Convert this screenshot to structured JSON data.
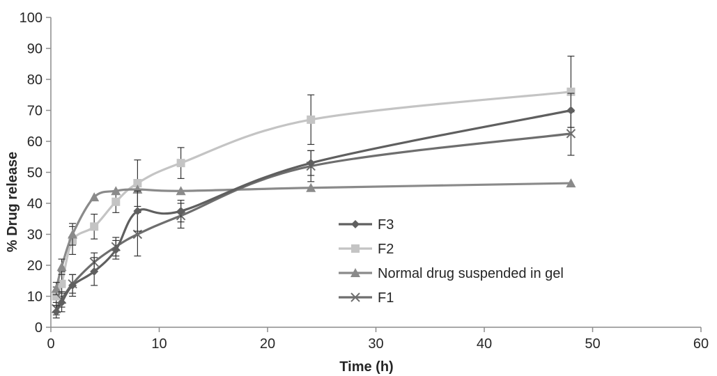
{
  "chart_data": {
    "type": "line",
    "xlabel": "Time (h)",
    "ylabel": "% Drug release",
    "xlim": [
      0,
      60
    ],
    "ylim": [
      0,
      100
    ],
    "x_ticks": [
      0,
      10,
      20,
      30,
      40,
      50,
      60
    ],
    "y_ticks": [
      0,
      10,
      20,
      30,
      40,
      50,
      60,
      70,
      80,
      90,
      100
    ],
    "grid": false,
    "legend_position": "center-right",
    "series": [
      {
        "name": "F3",
        "color": "#5f5f5f",
        "marker": "diamond",
        "x": [
          0.5,
          1,
          2,
          4,
          6,
          8,
          12,
          24,
          48
        ],
        "y": [
          5,
          8,
          13.5,
          18,
          25,
          37.5,
          37.5,
          53,
          70
        ],
        "err": [
          2,
          3,
          3.5,
          4.5,
          3,
          6.5,
          3.5,
          4,
          5.5
        ]
      },
      {
        "name": "F2",
        "color": "#c4c4c4",
        "marker": "square",
        "x": [
          0.5,
          1,
          2,
          4,
          6,
          8,
          12,
          24,
          48
        ],
        "y": [
          10,
          14,
          28,
          32.5,
          40.5,
          46.5,
          53,
          67,
          76
        ],
        "err": [
          3,
          4,
          4.5,
          4,
          3.5,
          7.5,
          5,
          8,
          11.5
        ]
      },
      {
        "name": "Normal drug suspended in gel",
        "color": "#8a8a8a",
        "marker": "triangle",
        "x": [
          0.5,
          1,
          2,
          4,
          6,
          8,
          12,
          24,
          48
        ],
        "y": [
          12.5,
          19.5,
          30,
          42,
          44,
          44.5,
          44,
          45,
          46.5
        ],
        "err": [
          2,
          2.5,
          3.5,
          0,
          0,
          0,
          0,
          0,
          0
        ]
      },
      {
        "name": "F1",
        "color": "#6e6e6e",
        "marker": "x",
        "x": [
          0.5,
          1,
          2,
          4,
          6,
          8,
          12,
          24,
          48
        ],
        "y": [
          6,
          9,
          14,
          21,
          26,
          30,
          36,
          52,
          62.5
        ],
        "err": [
          2,
          2.5,
          3,
          3,
          3,
          7,
          4,
          5,
          7
        ]
      }
    ]
  }
}
